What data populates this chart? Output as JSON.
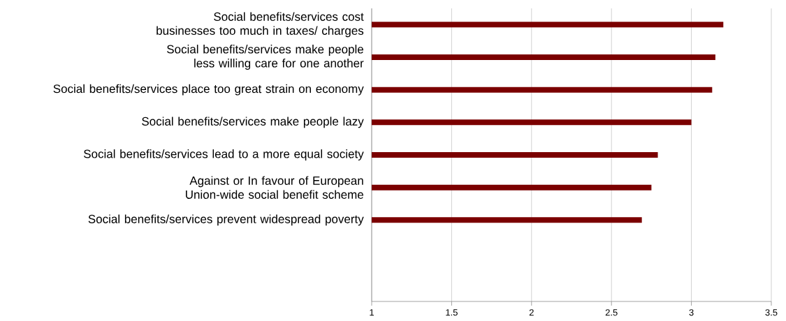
{
  "chart_data": {
    "type": "bar",
    "orientation": "horizontal",
    "categories": [
      "Social benefits/services cost businesses too much in taxes/ charges",
      "Social benefits/services make people less willing care for one another",
      "Social benefits/services place too great strain on economy",
      "Social benefits/services make people lazy",
      "Social benefits/services lead to a more equal society",
      "Against or In favour of European Union-wide social benefit scheme",
      "Social benefits/services prevent widespread poverty",
      null,
      null
    ],
    "values": [
      3.2,
      3.15,
      3.13,
      3.0,
      2.79,
      2.75,
      2.69,
      null,
      null
    ],
    "color": "#7b0000",
    "xlim": [
      1,
      3.5
    ],
    "xticks": [
      1,
      1.5,
      2,
      2.5,
      3,
      3.5
    ],
    "grid": "x"
  }
}
